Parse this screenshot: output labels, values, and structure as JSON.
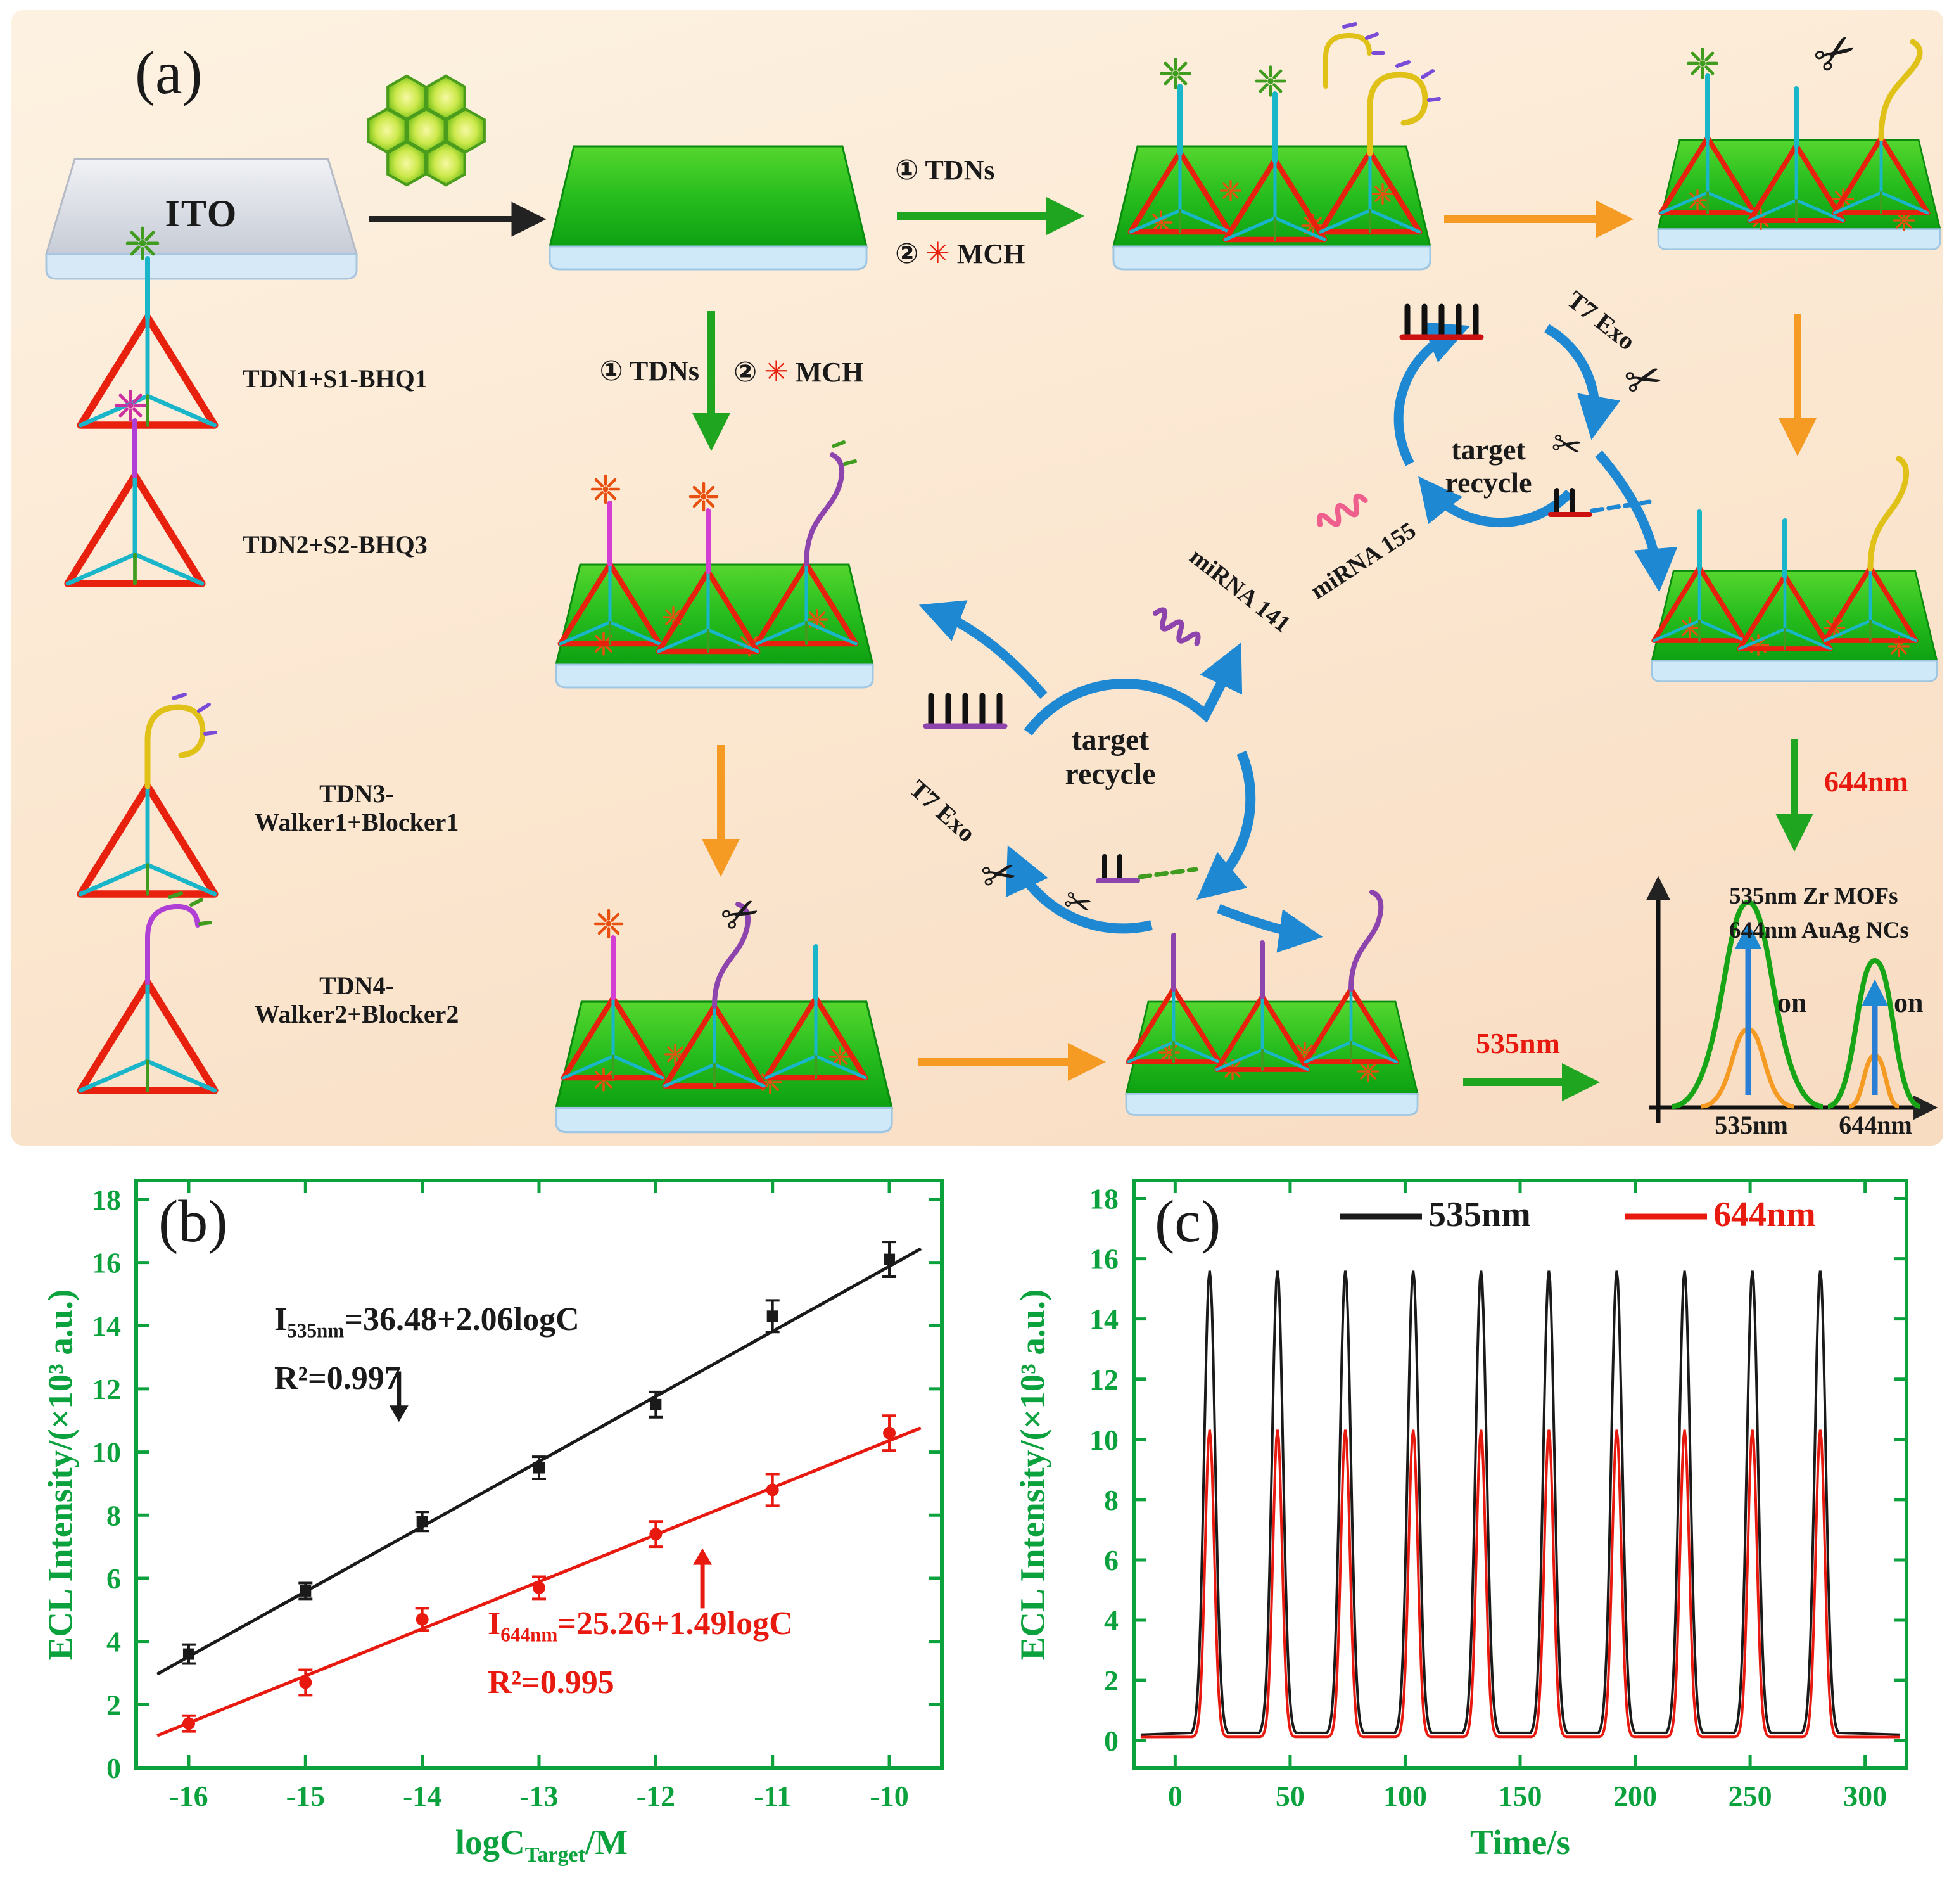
{
  "panels": {
    "a": "(a)",
    "b": "(b)",
    "c": "(c)"
  },
  "icons": {
    "scissors": "✂",
    "star": "✳"
  },
  "schematic": {
    "ito": "ITO",
    "step_top": {
      "step1": "① TDNs",
      "step2": "②",
      "mch": "MCH"
    },
    "step_mid": {
      "step1": "① TDNs",
      "step2": "②",
      "mch": "MCH"
    },
    "tdn_list": [
      {
        "line1": "TDN1+S1-BHQ1",
        "line2": ""
      },
      {
        "line1": "TDN2+S2-BHQ3",
        "line2": ""
      },
      {
        "line1": "TDN3-",
        "line2": "Walker1+Blocker1"
      },
      {
        "line1": "TDN4-",
        "line2": "Walker2+Blocker2"
      }
    ],
    "recycle": {
      "line1": "target",
      "line2": "recycle"
    },
    "t7exo": "T7 Exo",
    "mirna155": "miRNA 155",
    "mirna141": "miRNA 141",
    "nm644": "644nm",
    "nm535": "535nm",
    "spectrum": {
      "legend1": "535nm Zr MOFs",
      "legend2": "644nm AuAg NCs",
      "on": "on",
      "x1": "535nm",
      "x2": "644nm"
    }
  },
  "chart_data": [
    {
      "id": "b",
      "type": "scatter",
      "axis_color": "#0ba23e",
      "xlabel": {
        "pre": "logC",
        "sub": "Target",
        "post": "/M"
      },
      "ylabel": "ECL Intensity/(×10³ a.u.)",
      "xlim": [
        -16.45,
        -9.55
      ],
      "ylim": [
        0,
        18.6
      ],
      "xticks": [
        -16,
        -15,
        -14,
        -13,
        -12,
        -11,
        -10
      ],
      "yticks": [
        0,
        2,
        4,
        6,
        8,
        10,
        12,
        14,
        16,
        18
      ],
      "series": [
        {
          "name": "535nm",
          "color": "#1a1a1a",
          "marker": "square",
          "x": [
            -16,
            -15,
            -14,
            -13,
            -12,
            -11,
            -10
          ],
          "y": [
            3.6,
            5.6,
            7.8,
            9.5,
            11.5,
            14.3,
            16.1
          ],
          "err": [
            0.3,
            0.25,
            0.3,
            0.35,
            0.4,
            0.5,
            0.55
          ],
          "fit": {
            "intercept": 36.48,
            "slope": 2.06
          }
        },
        {
          "name": "644nm",
          "color": "#e8190f",
          "marker": "circle",
          "x": [
            -16,
            -15,
            -14,
            -13,
            -12,
            -11,
            -10
          ],
          "y": [
            1.4,
            2.7,
            4.7,
            5.7,
            7.4,
            8.8,
            10.6
          ],
          "err": [
            0.25,
            0.4,
            0.35,
            0.35,
            0.4,
            0.5,
            0.55
          ],
          "fit": {
            "intercept": 25.26,
            "slope": 1.49
          }
        }
      ],
      "annotations": [
        {
          "pre": "I",
          "sub": "535nm",
          "eq": "=36.48+2.06logC",
          "r2": "R²=0.997",
          "color": "#1a1a1a",
          "arrow": {
            "x": -14.2,
            "y1": 12.55,
            "y2": 10.95
          }
        },
        {
          "pre": "I",
          "sub": "644nm",
          "eq": "=25.26+1.49logC",
          "r2": "R²=0.995",
          "color": "#e8190f",
          "arrow": {
            "x": -11.6,
            "y1": 5.05,
            "y2": 6.95
          }
        }
      ]
    },
    {
      "id": "c",
      "type": "line",
      "axis_color": "#0ba23e",
      "xlabel": "Time/s",
      "ylabel": "ECL Intensity/(×10³ a.u.)",
      "xlim": [
        -18,
        318
      ],
      "ylim": [
        -0.9,
        18.6
      ],
      "xticks": [
        0,
        50,
        100,
        150,
        200,
        250,
        300
      ],
      "yticks": [
        0,
        2,
        4,
        6,
        8,
        10,
        12,
        14,
        16,
        18
      ],
      "legend": [
        {
          "label": "535nm",
          "color": "#1a1a1a"
        },
        {
          "label": "644nm",
          "color": "#e8190f"
        }
      ],
      "peaks": {
        "centers": [
          15,
          44.5,
          74,
          103.5,
          133,
          162.5,
          192,
          221.5,
          251,
          280.5
        ],
        "series": [
          {
            "name": "535nm",
            "color": "#1a1a1a",
            "baseline": 0.2,
            "height": 15.4,
            "sigma": 2.4
          },
          {
            "name": "644nm",
            "color": "#e8190f",
            "baseline": 0.12,
            "height": 10.2,
            "sigma": 2.0
          }
        ]
      }
    }
  ]
}
